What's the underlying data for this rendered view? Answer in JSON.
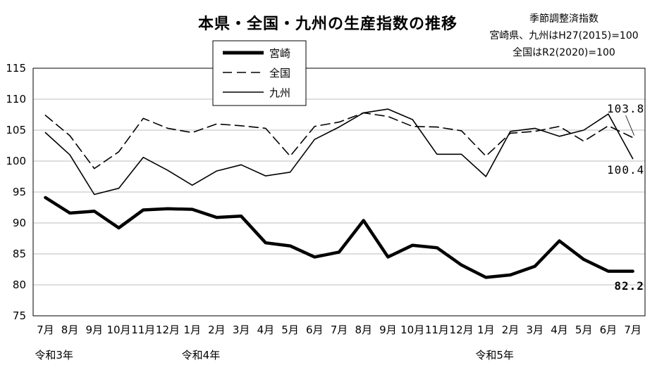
{
  "chart_data": {
    "type": "line",
    "title": "本県・全国・九州の生産指数の推移",
    "notes": [
      "季節調整済指数",
      "宮崎県、九州はH27(2015)=100",
      "全国はR2(2020)=100"
    ],
    "categories": [
      "7月",
      "8月",
      "9月",
      "10月",
      "11月",
      "12月",
      "1月",
      "2月",
      "3月",
      "4月",
      "5月",
      "6月",
      "7月",
      "8月",
      "9月",
      "10月",
      "11月",
      "12月",
      "1月",
      "2月",
      "3月",
      "4月",
      "5月",
      "6月",
      "7月"
    ],
    "era_labels": [
      {
        "index": 0,
        "label": "令和3年"
      },
      {
        "index": 6,
        "label": "令和4年"
      },
      {
        "index": 18,
        "label": "令和5年"
      }
    ],
    "ylim": [
      75,
      115
    ],
    "yticks": [
      75,
      80,
      85,
      90,
      95,
      100,
      105,
      110,
      115
    ],
    "grid": true,
    "legend_position": "top-left",
    "series": [
      {
        "name": "宮崎",
        "style": "thick",
        "color": "#000000",
        "values": [
          94.1,
          91.6,
          91.9,
          89.2,
          92.1,
          92.3,
          92.2,
          90.9,
          91.1,
          86.8,
          86.3,
          84.5,
          85.3,
          90.4,
          84.5,
          86.4,
          86.0,
          83.2,
          81.2,
          81.6,
          83.0,
          87.1,
          84.1,
          82.2,
          82.2
        ]
      },
      {
        "name": "全国",
        "style": "dashed",
        "color": "#000000",
        "values": [
          107.4,
          104.1,
          98.8,
          101.5,
          106.9,
          105.3,
          104.6,
          106.0,
          105.7,
          105.3,
          100.8,
          105.6,
          106.3,
          107.8,
          107.2,
          105.6,
          105.5,
          104.9,
          100.8,
          104.5,
          104.8,
          105.6,
          103.2,
          105.7,
          103.8
        ]
      },
      {
        "name": "九州",
        "style": "thin",
        "color": "#000000",
        "values": [
          104.6,
          101.0,
          94.6,
          95.6,
          100.6,
          98.5,
          96.1,
          98.4,
          99.4,
          97.6,
          98.2,
          103.5,
          105.5,
          107.8,
          108.4,
          106.7,
          101.1,
          101.1,
          97.5,
          104.8,
          105.3,
          104.0,
          105.0,
          107.6,
          100.4
        ]
      }
    ],
    "data_labels": [
      {
        "series": "全国",
        "index": 24,
        "text": "103.8"
      },
      {
        "series": "九州",
        "index": 24,
        "text": "100.4"
      },
      {
        "series": "宮崎",
        "index": 24,
        "text": "82.2"
      }
    ]
  }
}
